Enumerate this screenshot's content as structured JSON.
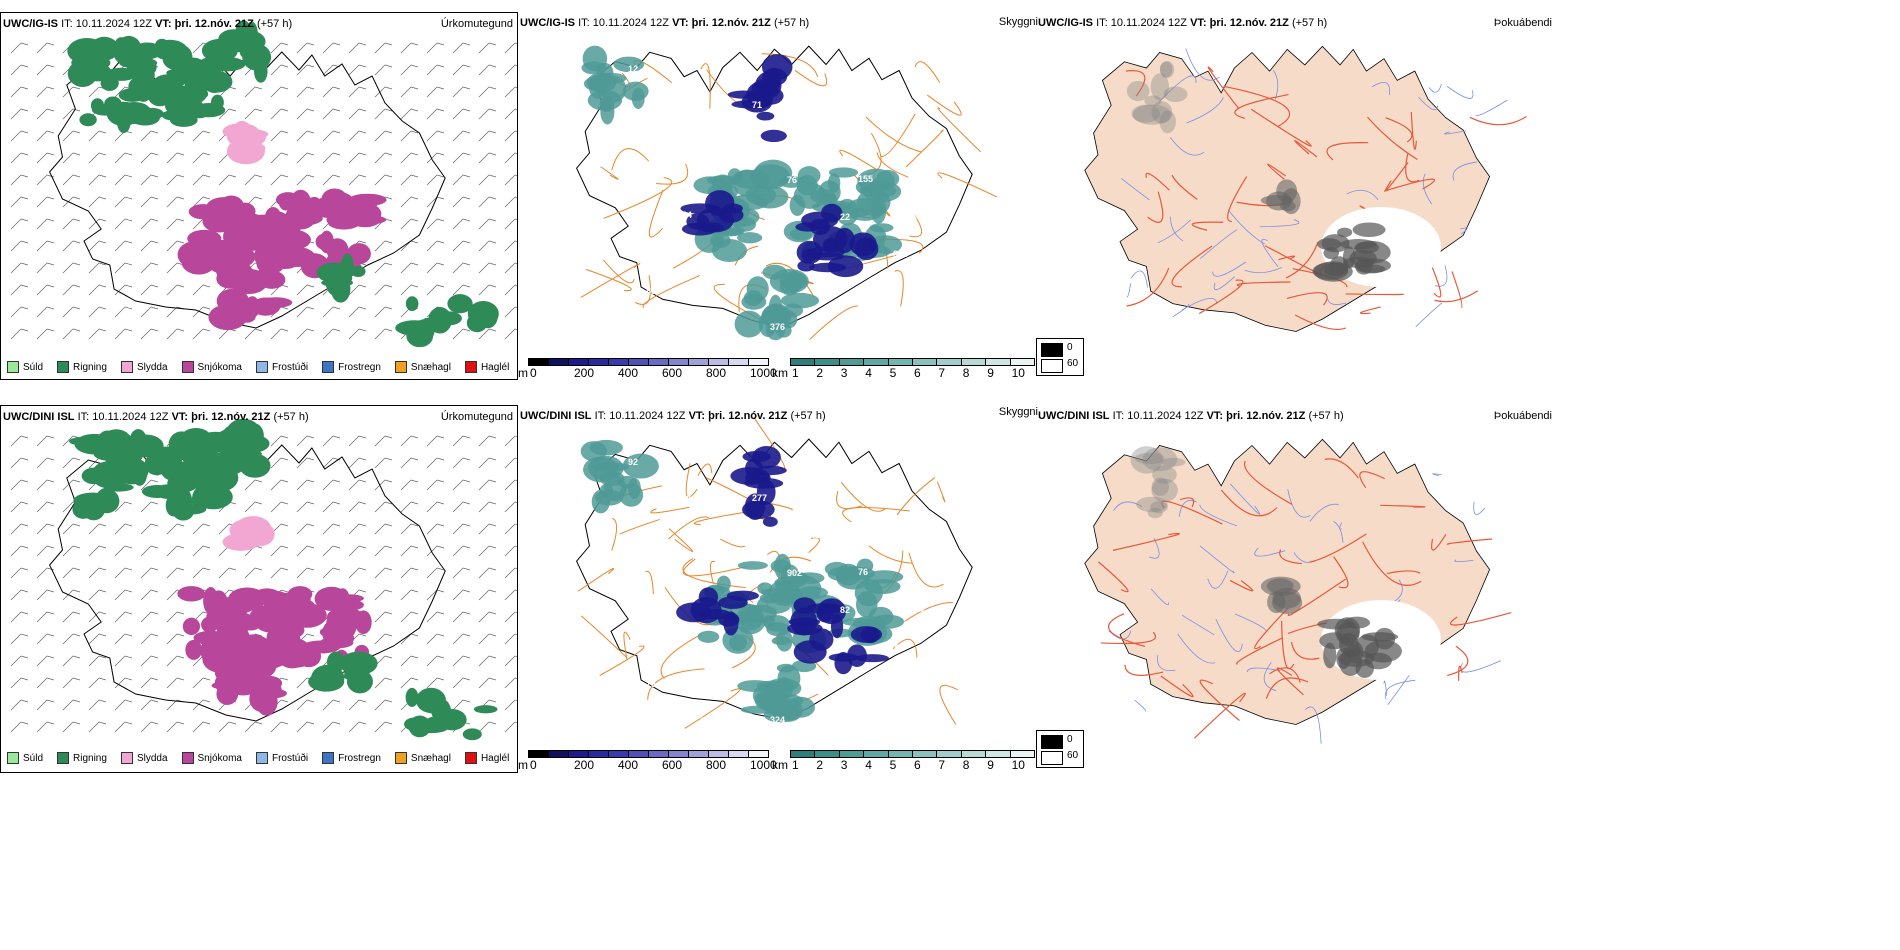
{
  "rows": [
    {
      "model": "UWC/IG-IS",
      "it_label": "IT:",
      "it_value": "10.11.2024 12Z",
      "vt_label": "VT:",
      "vt_value": "þri. 12.nóv. 21Z",
      "lead": "(+57 h)",
      "precip_title": "Úrkomutegund",
      "vis_title": "Skyggni",
      "fog_title": "Þokuábendi"
    },
    {
      "model": "UWC/DINI ISL",
      "it_label": "IT:",
      "it_value": "10.11.2024 12Z",
      "vt_label": "VT:",
      "vt_value": "þri. 12.nóv. 21Z",
      "lead": "(+57 h)",
      "precip_title": "Úrkomutegund",
      "vis_title": "Skyggni",
      "fog_title": "Þokuábendi"
    }
  ],
  "precip_legend": [
    {
      "label": "Súld",
      "color": "#9be89b"
    },
    {
      "label": "Rigning",
      "color": "#2e8b57"
    },
    {
      "label": "Slydda",
      "color": "#f1a7d2"
    },
    {
      "label": "Snjókoma",
      "color": "#b8469a"
    },
    {
      "label": "Frostúði",
      "color": "#8fb8e8"
    },
    {
      "label": "Frostregn",
      "color": "#3d74c4"
    },
    {
      "label": "Snæhagl",
      "color": "#f0a020"
    },
    {
      "label": "Haglél",
      "color": "#e01010"
    }
  ],
  "height_bar": {
    "unit": "m",
    "ticks": [
      "0",
      "200",
      "400",
      "600",
      "800",
      "1000"
    ]
  },
  "vis_bar": {
    "unit": "km",
    "ticks": [
      "1",
      "2",
      "3",
      "4",
      "5",
      "6",
      "7",
      "8",
      "9",
      "10"
    ]
  },
  "fog_legend": [
    {
      "label": "0",
      "color": "#000000"
    },
    {
      "label": "60",
      "color": "#ffffff"
    }
  ],
  "colors": {
    "rain": "#2e8b57",
    "snow": "#b8469a",
    "sleet": "#f1a7d2",
    "roads": "#e8862a",
    "fog_land": "#f6dcc8",
    "fog_roads": "#e8583a",
    "rivers": "#7a8de8",
    "vis_teal": "#4f9a96",
    "vis_navy": "#1a1a8c"
  },
  "vis_labels_top": [
    "12",
    "69",
    "37",
    "76",
    "22",
    "918",
    "83",
    "65",
    "71",
    "47",
    "155",
    "83",
    "11",
    "73",
    "376",
    "13",
    "47",
    "56",
    "64"
  ],
  "vis_labels_bottom": [
    "92",
    "76",
    "101",
    "902",
    "82",
    "71",
    "76",
    "49",
    "277",
    "142",
    "76",
    "102",
    "10",
    "24",
    "324",
    "45",
    "47",
    "2"
  ]
}
